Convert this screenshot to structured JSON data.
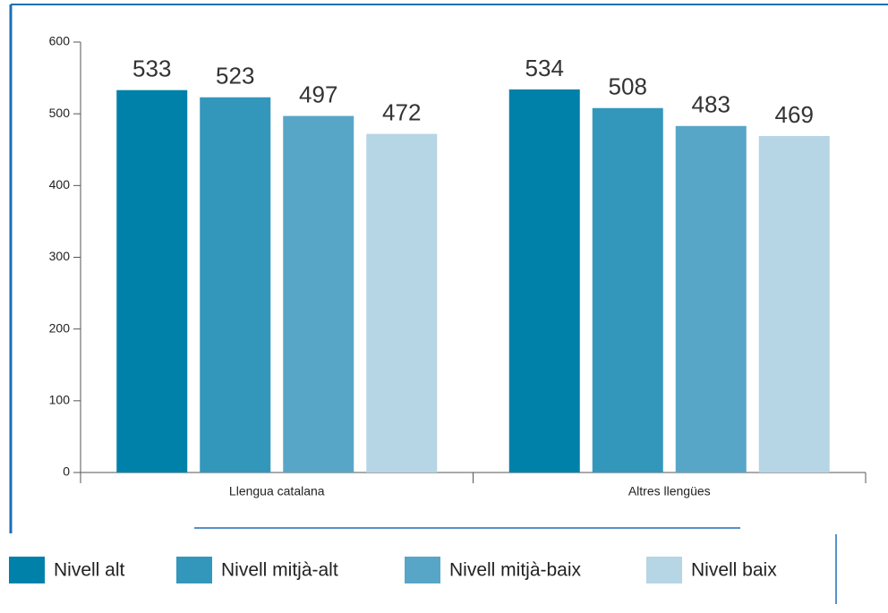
{
  "chart_data": {
    "type": "bar",
    "categories": [
      "Llengua catalana",
      "Altres llengües"
    ],
    "series": [
      {
        "name": "Nivell alt",
        "color": "#0081a9",
        "values": [
          533,
          534
        ]
      },
      {
        "name": "Nivell mitjà-alt",
        "color": "#3397bb",
        "values": [
          523,
          508
        ]
      },
      {
        "name": "Nivell mitjà-baix",
        "color": "#58a6c7",
        "values": [
          497,
          483
        ]
      },
      {
        "name": "Nivell baix",
        "color": "#b6d5e5",
        "values": [
          472,
          469
        ]
      }
    ],
    "ylim": [
      0,
      600
    ],
    "yticks": [
      0,
      100,
      200,
      300,
      400,
      500,
      600
    ],
    "grid": false
  }
}
